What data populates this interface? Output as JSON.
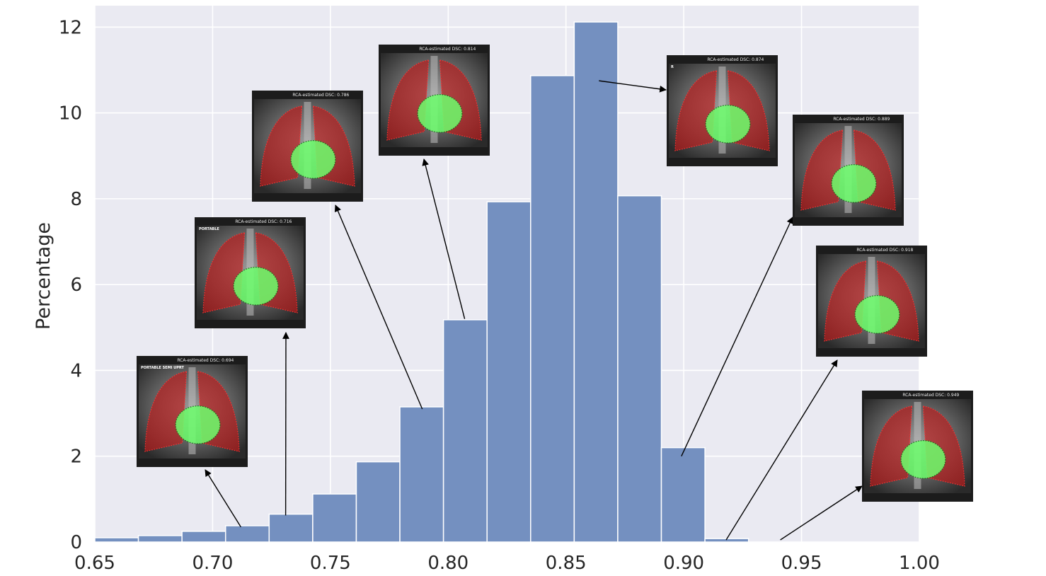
{
  "chart_data": {
    "type": "bar",
    "title": "",
    "xlabel": "",
    "ylabel": "Percentage",
    "xlim": [
      0.65,
      1.0
    ],
    "ylim": [
      0,
      12.5
    ],
    "x_ticks": [
      "0.65",
      "0.70",
      "0.75",
      "0.80",
      "0.85",
      "0.90",
      "0.95",
      "1.00"
    ],
    "y_ticks": [
      "0",
      "2",
      "4",
      "6",
      "8",
      "10",
      "12"
    ],
    "bin_width": 0.0185,
    "bins": [
      {
        "x0": 0.65,
        "value": 0.1
      },
      {
        "x0": 0.6685,
        "value": 0.15
      },
      {
        "x0": 0.687,
        "value": 0.25
      },
      {
        "x0": 0.7055,
        "value": 0.38
      },
      {
        "x0": 0.724,
        "value": 0.65
      },
      {
        "x0": 0.7425,
        "value": 1.12
      },
      {
        "x0": 0.761,
        "value": 1.87
      },
      {
        "x0": 0.7795,
        "value": 3.15
      },
      {
        "x0": 0.798,
        "value": 5.18
      },
      {
        "x0": 0.8165,
        "value": 7.93
      },
      {
        "x0": 0.835,
        "value": 10.87
      },
      {
        "x0": 0.8535,
        "value": 12.12
      },
      {
        "x0": 0.872,
        "value": 8.07
      },
      {
        "x0": 0.8905,
        "value": 2.2
      },
      {
        "x0": 0.909,
        "value": 0.08
      }
    ],
    "bar_color": "#7490c0",
    "background_color": "#eaeaf2",
    "grid": true,
    "annotations": [
      {
        "caption": "RCA-estimated DSC: 0.694",
        "corner_text": "PORTABLE SEMI UPRT",
        "x": 0.712,
        "y": 0.35
      },
      {
        "caption": "RCA-estimated DSC: 0.716",
        "corner_text": "PORTABLE",
        "x": 0.731,
        "y": 0.62
      },
      {
        "caption": "RCA-estimated DSC: 0.786",
        "corner_text": "",
        "x": 0.789,
        "y": 3.1
      },
      {
        "caption": "RCA-estimated DSC: 0.814",
        "corner_text": "",
        "x": 0.807,
        "y": 5.2
      },
      {
        "caption": "RCA-estimated DSC: 0.874",
        "corner_text": "R",
        "x": 0.864,
        "y": 10.75
      },
      {
        "caption": "RCA-estimated DSC: 0.889",
        "corner_text": "",
        "x": 0.899,
        "y": 2.0
      },
      {
        "caption": "RCA-estimated DSC: 0.918",
        "corner_text": "",
        "x": 0.918,
        "y": 0.05
      },
      {
        "caption": "RCA-estimated DSC: 0.949",
        "corner_text": "",
        "x": 0.941,
        "y": 0.05
      }
    ]
  }
}
